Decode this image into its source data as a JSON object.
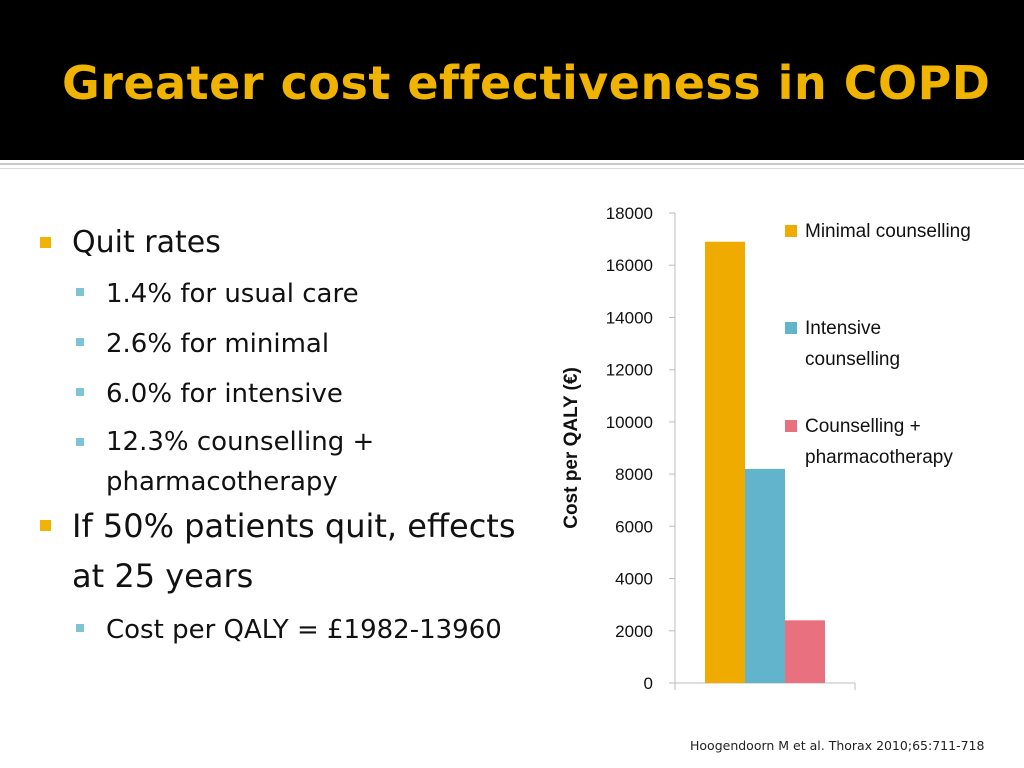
{
  "slide": {
    "title": "Greater cost effectiveness in COPD",
    "reference": "Hoogendoorn M et al. Thorax 2010;65:711-718"
  },
  "bullets": {
    "quit_rates": "Quit rates",
    "usual_care": "1.4% for usual care",
    "minimal": "2.6% for minimal",
    "intensive": "6.0% for intensive",
    "combo_line1": "12.3% counselling +",
    "combo_line2": "pharmacotherapy",
    "if_line1": "If 50% patients quit, effects",
    "if_line2": "at 25 years",
    "cost": "Cost per QALY = £1982-13960"
  },
  "colors": {
    "title": "#f0b400",
    "bullet_main": "#f0b400",
    "bullet_sub": "#7fc3d7"
  },
  "chart_data": {
    "type": "bar",
    "ylabel": "Cost per QALY (€)",
    "xlabel": "",
    "ylim": [
      0,
      18000
    ],
    "yticks": [
      0,
      2000,
      4000,
      6000,
      8000,
      10000,
      12000,
      14000,
      16000,
      18000
    ],
    "grid": false,
    "legend_position": "right",
    "series": [
      {
        "name": "Minimal counselling",
        "value": 16900,
        "color": "#f0ab00"
      },
      {
        "name": "Intensive counselling",
        "value": 8200,
        "color": "#62b4cc"
      },
      {
        "name": "Counselling + pharmacotherapy",
        "value": 2400,
        "color": "#e8707f"
      }
    ]
  }
}
